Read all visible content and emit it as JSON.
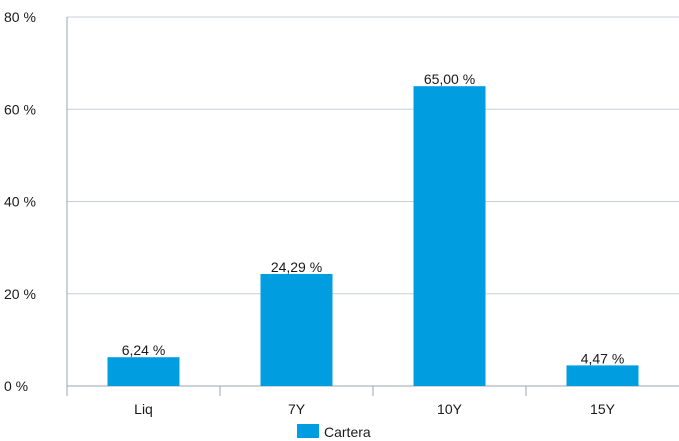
{
  "chart_data": {
    "type": "bar",
    "categories": [
      "Liq",
      "7Y",
      "10Y",
      "15Y"
    ],
    "series": [
      {
        "name": "Cartera",
        "values": [
          6.24,
          24.29,
          65.0,
          4.47
        ]
      }
    ],
    "data_labels": [
      "6,24 %",
      "24,29 %",
      "65,00 %",
      "4,47 %"
    ],
    "y_ticks": [
      "0 %",
      "20 %",
      "40 %",
      "60 %",
      "80 %"
    ],
    "ylim": [
      0,
      80
    ],
    "y_tick_values": [
      0,
      20,
      40,
      60,
      80
    ],
    "grid": true,
    "legend_position": "bottom",
    "colors": {
      "bar": "#009ee0",
      "grid": "#c5d0dd",
      "axis": "#9aa5b1"
    }
  }
}
